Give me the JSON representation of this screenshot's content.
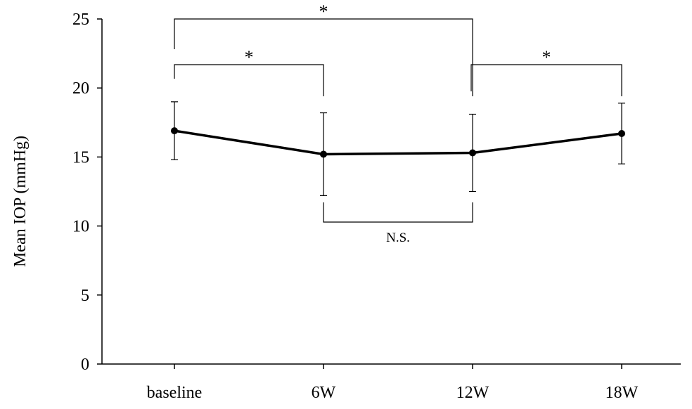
{
  "chart_data": {
    "type": "line",
    "categories": [
      "baseline",
      "6W",
      "12W",
      "18W"
    ],
    "series": [
      {
        "values": [
          16.9,
          15.2,
          15.3,
          16.7
        ],
        "error": [
          2.1,
          3.0,
          2.8,
          2.2
        ]
      }
    ],
    "ylabel": "Mean IOP (mmHg)",
    "xlabel": "",
    "ylim": [
      0,
      25
    ],
    "yticks": [
      "0",
      "5",
      "10",
      "15",
      "20",
      "25"
    ],
    "grid": false,
    "annotations": [
      {
        "from": "baseline",
        "to": "12W",
        "label": "*",
        "side": "above"
      },
      {
        "from": "baseline",
        "to": "6W",
        "label": "*",
        "side": "above"
      },
      {
        "from": "12W",
        "to": "18W",
        "label": "*",
        "side": "above"
      },
      {
        "from": "6W",
        "to": "12W",
        "label": "N.S.",
        "side": "below"
      }
    ],
    "colors": {
      "line": "#000000",
      "marker": "#000000"
    }
  }
}
